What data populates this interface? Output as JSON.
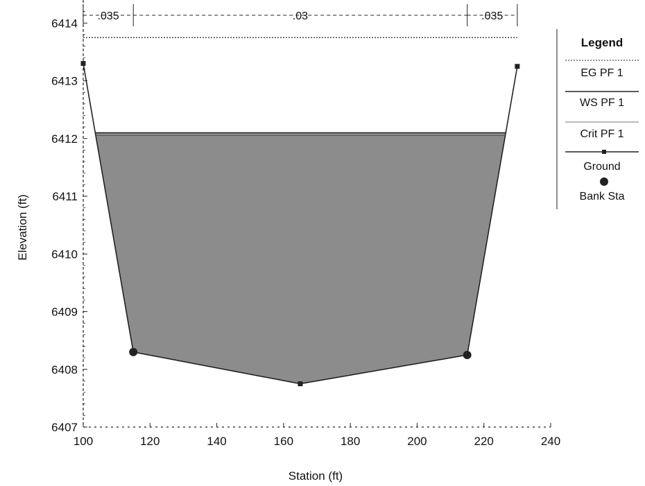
{
  "chart_data": {
    "type": "line",
    "xlabel": "Station (ft)",
    "ylabel": "Elevation (ft)",
    "xlim": [
      100,
      240
    ],
    "ylim": [
      6407,
      6414.4
    ],
    "x_ticks": [
      100,
      120,
      140,
      160,
      180,
      200,
      220,
      240
    ],
    "y_ticks": [
      6407,
      6408,
      6409,
      6410,
      6411,
      6412,
      6413,
      6414
    ],
    "grid": false,
    "legend_position": "right",
    "legend": {
      "title": "Legend",
      "entries": [
        "EG PF 1",
        "WS PF 1",
        "Crit PF 1",
        "Ground",
        "Bank Sta"
      ]
    },
    "ground": {
      "name": "Ground",
      "x": [
        100,
        115,
        165,
        215,
        230
      ],
      "y": [
        6413.3,
        6408.3,
        6407.75,
        6408.25,
        6413.25
      ]
    },
    "bank_stations": {
      "name": "Bank Sta",
      "x": [
        115,
        215
      ],
      "y": [
        6408.3,
        6408.25
      ]
    },
    "eg_pf1": {
      "name": "EG PF 1",
      "elevation": 6413.75
    },
    "ws_pf1": {
      "name": "WS PF 1",
      "elevation": 6412.1
    },
    "crit_pf1": {
      "name": "Crit PF 1",
      "elevation": 6412.1
    },
    "mannings_n": [
      {
        "label": ".035",
        "x_start": 100,
        "x_end": 115
      },
      {
        "label": ".03",
        "x_start": 115,
        "x_end": 215
      },
      {
        "label": ".035",
        "x_start": 215,
        "x_end": 230
      }
    ],
    "colors": {
      "water_fill": "#8c8c8c",
      "line": "#222222"
    }
  }
}
